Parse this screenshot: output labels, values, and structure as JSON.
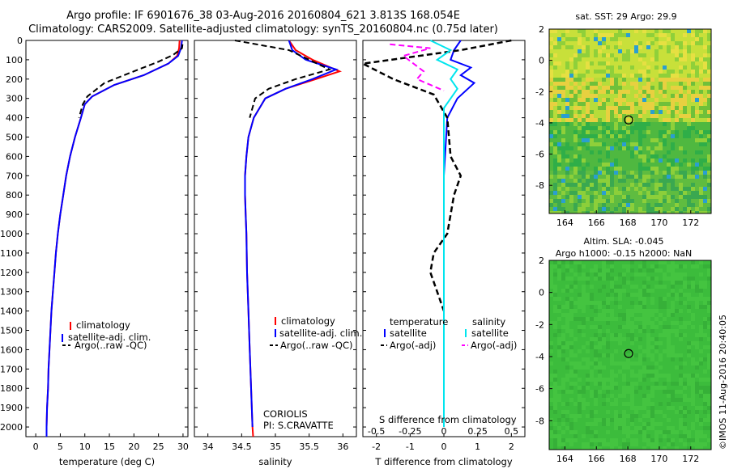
{
  "header": {
    "line1": "Argo profile: IF 6901676_38 03-Aug-2016 20160804_621 3.813S 168.054E",
    "line2": "Climatology: CARS2009. Satellite-adjusted climatology: synTS_20160804.nc (0.75d later)"
  },
  "legend_left": {
    "climatology": "climatology",
    "satellite": "satellite-adj. clim.",
    "argo": "Argo(..raw -QC)"
  },
  "legend_mid": {
    "climatology": "climatology",
    "satellite": "satellite-adj. clim.",
    "argo": "Argo(..raw -QC)"
  },
  "legend_diff": {
    "temp_head": "temperature",
    "temp_sat": "satellite",
    "temp_argo": "Argo(-adj)",
    "sal_head": "salinity",
    "sal_sat": "satellite",
    "sal_argo": "Argo(-adj)"
  },
  "notes": {
    "coriolis": "CORIOLIS",
    "pi": "PI: S.CRAVATTE"
  },
  "map_top": {
    "title": "sat. SST: 29 Argo: 29.9"
  },
  "map_bottom": {
    "title1": "Altim. SLA: -0.045",
    "title2": "Argo h1000: -0.15 h2000: NaN"
  },
  "credit": "©IMOS 11-Aug-2016 20:40:05",
  "colors": {
    "climatology": "#ff0000",
    "satellite": "#0000ff",
    "argo": "#000000",
    "sal_sat": "#00e5ee",
    "sal_argo": "#ff00ff"
  },
  "chart_data": [
    {
      "type": "line",
      "xlabel": "temperature (deg C)",
      "ylabel": "",
      "xlim": [
        -2,
        31
      ],
      "ylim": [
        2050,
        0
      ],
      "xticks": [
        "0",
        "5",
        "10",
        "15",
        "20",
        "25",
        "30"
      ],
      "yticks": [
        "0",
        "100",
        "200",
        "300",
        "400",
        "500",
        "600",
        "700",
        "800",
        "900",
        "1000",
        "1100",
        "1200",
        "1300",
        "1400",
        "1500",
        "1600",
        "1700",
        "1800",
        "1900",
        "2000"
      ],
      "series": [
        {
          "name": "climatology",
          "points": [
            [
              29.3,
              0
            ],
            [
              29.2,
              40
            ],
            [
              28.8,
              80
            ],
            [
              27,
              120
            ],
            [
              22,
              180
            ],
            [
              16,
              230
            ],
            [
              11.5,
              290
            ],
            [
              10,
              330
            ],
            [
              9.2,
              400
            ],
            [
              8,
              500
            ],
            [
              7,
              600
            ],
            [
              6.2,
              700
            ],
            [
              5.6,
              800
            ],
            [
              5,
              900
            ],
            [
              4.5,
              1000
            ],
            [
              4.1,
              1100
            ],
            [
              3.8,
              1200
            ],
            [
              3.5,
              1300
            ],
            [
              3.2,
              1400
            ],
            [
              3,
              1500
            ],
            [
              2.8,
              1600
            ],
            [
              2.6,
              1700
            ],
            [
              2.5,
              1800
            ],
            [
              2.3,
              1900
            ],
            [
              2.2,
              2000
            ],
            [
              2.2,
              2050
            ]
          ]
        },
        {
          "name": "satellite-adj. clim.",
          "points": [
            [
              29.8,
              0
            ],
            [
              29.6,
              40
            ],
            [
              29,
              80
            ],
            [
              27,
              120
            ],
            [
              22,
              180
            ],
            [
              16,
              230
            ],
            [
              11.5,
              290
            ],
            [
              10,
              330
            ],
            [
              9.2,
              400
            ],
            [
              8,
              500
            ],
            [
              7,
              600
            ],
            [
              6.2,
              700
            ],
            [
              5.6,
              800
            ],
            [
              5,
              900
            ],
            [
              4.5,
              1000
            ],
            [
              4.1,
              1100
            ],
            [
              3.8,
              1200
            ],
            [
              3.5,
              1300
            ],
            [
              3.2,
              1400
            ],
            [
              3,
              1500
            ],
            [
              2.8,
              1600
            ],
            [
              2.6,
              1700
            ],
            [
              2.5,
              1800
            ],
            [
              2.3,
              1900
            ],
            [
              2.2,
              2000
            ],
            [
              2.2,
              2050
            ]
          ]
        },
        {
          "name": "Argo(..raw -QC)",
          "points": [
            [
              29.9,
              20
            ],
            [
              29.8,
              40
            ],
            [
              28,
              75
            ],
            [
              25,
              110
            ],
            [
              20,
              160
            ],
            [
              14,
              220
            ],
            [
              10.5,
              290
            ],
            [
              9.6,
              330
            ],
            [
              8.8,
              400
            ]
          ]
        }
      ]
    },
    {
      "type": "line",
      "xlabel": "salinity",
      "xlim": [
        33.8,
        36.2
      ],
      "ylim": [
        2050,
        0
      ],
      "xticks": [
        "34",
        "34.5",
        "35",
        "35.5",
        "36"
      ],
      "series": [
        {
          "name": "climatology",
          "points": [
            [
              35.2,
              0
            ],
            [
              35.3,
              50
            ],
            [
              35.55,
              100
            ],
            [
              35.95,
              160
            ],
            [
              35.6,
              200
            ],
            [
              35.15,
              250
            ],
            [
              34.85,
              300
            ],
            [
              34.68,
              400
            ],
            [
              34.6,
              500
            ],
            [
              34.57,
              600
            ],
            [
              34.55,
              700
            ],
            [
              34.55,
              800
            ],
            [
              34.56,
              900
            ],
            [
              34.57,
              1000
            ],
            [
              34.58,
              1200
            ],
            [
              34.6,
              1400
            ],
            [
              34.62,
              1600
            ],
            [
              34.64,
              1800
            ],
            [
              34.66,
              2000
            ],
            [
              34.67,
              2050
            ]
          ]
        },
        {
          "name": "satellite-adj. clim.",
          "points": [
            [
              35.2,
              0
            ],
            [
              35.25,
              50
            ],
            [
              35.45,
              100
            ],
            [
              35.9,
              150
            ],
            [
              35.55,
              200
            ],
            [
              35.15,
              250
            ],
            [
              34.85,
              300
            ],
            [
              34.68,
              400
            ],
            [
              34.6,
              500
            ],
            [
              34.57,
              600
            ],
            [
              34.55,
              700
            ],
            [
              34.55,
              800
            ],
            [
              34.56,
              900
            ],
            [
              34.57,
              1000
            ],
            [
              34.58,
              1200
            ],
            [
              34.6,
              1400
            ],
            [
              34.62,
              1600
            ],
            [
              34.64,
              1800
            ],
            [
              34.66,
              2000
            ]
          ]
        },
        {
          "name": "Argo(..raw -QC)",
          "points": [
            [
              34.4,
              0
            ],
            [
              35.2,
              50
            ],
            [
              35.5,
              100
            ],
            [
              35.8,
              150
            ],
            [
              35.3,
              200
            ],
            [
              34.9,
              250
            ],
            [
              34.7,
              300
            ],
            [
              34.62,
              400
            ]
          ]
        }
      ]
    },
    {
      "type": "line",
      "xlabel": "T difference from climatology",
      "xlabel_top": "S difference from climatology",
      "xlim": [
        -2.4,
        2.4
      ],
      "ylim": [
        2050,
        0
      ],
      "xticks": [
        "-2",
        "-1",
        "0",
        "1",
        "2"
      ],
      "xticks_top": [
        "-0.5",
        "-0.25",
        "0",
        "0.25",
        "0.5"
      ],
      "series": [
        {
          "name": "temperature satellite",
          "points": [
            [
              0.5,
              0
            ],
            [
              0.3,
              50
            ],
            [
              0.2,
              100
            ],
            [
              0.8,
              140
            ],
            [
              0.5,
              180
            ],
            [
              0.9,
              220
            ],
            [
              0.4,
              300
            ],
            [
              0.1,
              400
            ],
            [
              0,
              700
            ],
            [
              0,
              2000
            ]
          ]
        },
        {
          "name": "temperature Argo(-adj)",
          "points": [
            [
              2,
              0
            ],
            [
              0.5,
              50
            ],
            [
              -2.4,
              120
            ],
            [
              -1.5,
              200
            ],
            [
              -0.3,
              280
            ],
            [
              0.1,
              400
            ],
            [
              0.2,
              600
            ],
            [
              0.5,
              700
            ],
            [
              0.3,
              800
            ],
            [
              0.1,
              1000
            ],
            [
              -0.3,
              1100
            ],
            [
              -0.4,
              1200
            ],
            [
              -0.2,
              1300
            ],
            [
              0,
              1400
            ]
          ]
        },
        {
          "name": "salinity satellite",
          "points": [
            [
              -0.1,
              0
            ],
            [
              0.05,
              50
            ],
            [
              -0.05,
              100
            ],
            [
              0.1,
              150
            ],
            [
              0.05,
              200
            ],
            [
              0.1,
              250
            ],
            [
              0,
              350
            ],
            [
              0,
              2000
            ]
          ]
        },
        {
          "name": "salinity Argo(-adj)",
          "points": [
            [
              -0.4,
              20
            ],
            [
              -0.1,
              40
            ],
            [
              -0.3,
              80
            ],
            [
              -0.15,
              160
            ],
            [
              -0.2,
              200
            ],
            [
              0,
              260
            ]
          ]
        }
      ]
    },
    {
      "type": "heatmap",
      "title": "sat. SST: 29 Argo: 29.9",
      "xlim": [
        163,
        173.3
      ],
      "ylim": [
        -9.8,
        2
      ],
      "xticks": [
        "164",
        "166",
        "168",
        "170",
        "172"
      ],
      "yticks": [
        "2",
        "0",
        "-2",
        "-4",
        "-6",
        "-8"
      ],
      "marker": [
        168.05,
        -3.81
      ]
    },
    {
      "type": "heatmap",
      "title": "Altim. SLA: -0.045 / Argo h1000: -0.15 h2000: NaN",
      "xlim": [
        163,
        173.3
      ],
      "ylim": [
        -9.8,
        2
      ],
      "xticks": [
        "164",
        "166",
        "168",
        "170",
        "172"
      ],
      "yticks": [
        "2",
        "0",
        "-2",
        "-4",
        "-6",
        "-8"
      ],
      "marker": [
        168.05,
        -3.81
      ]
    }
  ]
}
